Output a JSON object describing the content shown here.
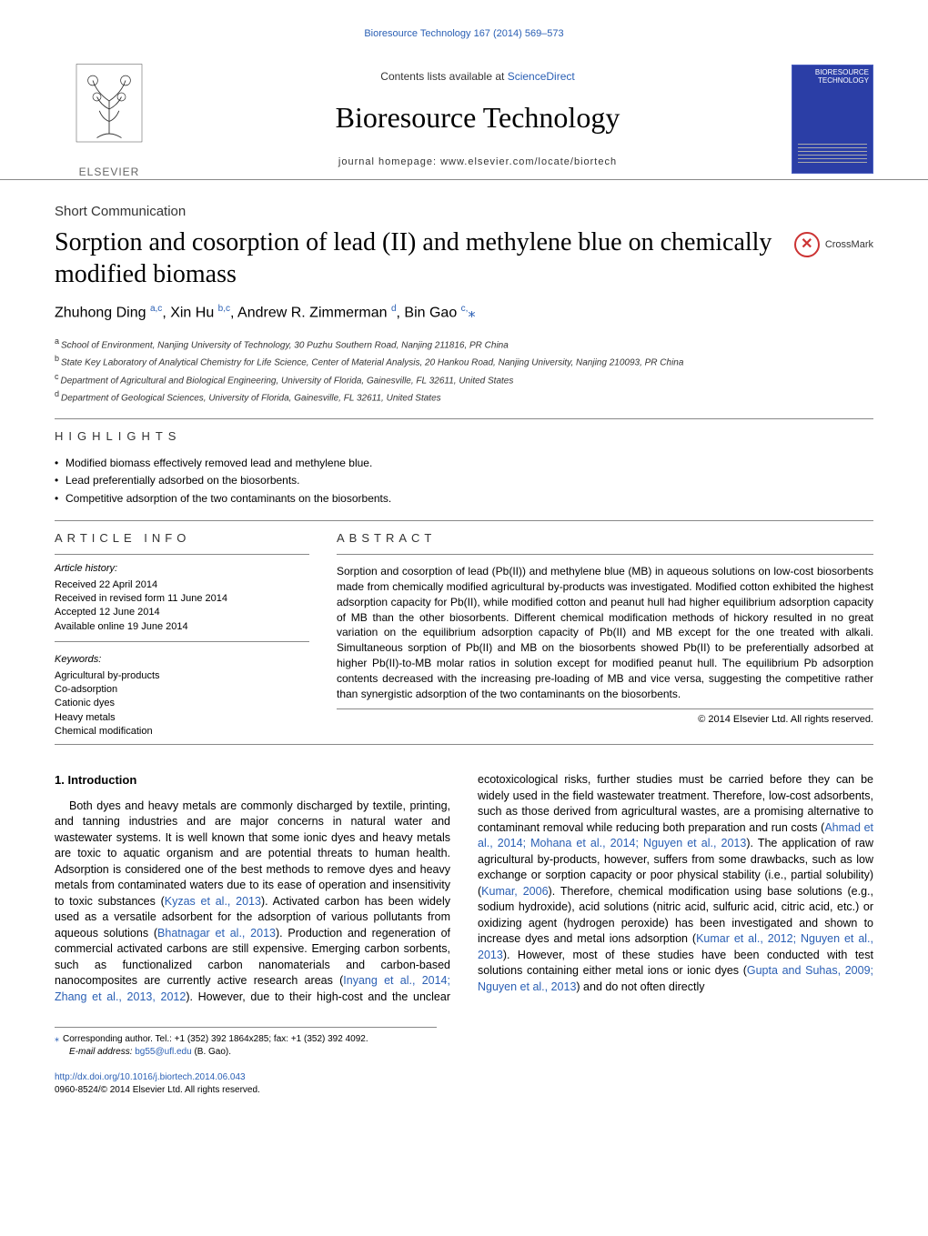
{
  "header_link": "Bioresource Technology 167 (2014) 569–573",
  "contents_line_prefix": "Contents lists available at ",
  "contents_line_link": "ScienceDirect",
  "journal_name": "Bioresource Technology",
  "homepage_line": "journal homepage: www.elsevier.com/locate/biortech",
  "cover_label": "BIORESOURCE\nTECHNOLOGY",
  "elsevier_label": "ELSEVIER",
  "short_comm": "Short Communication",
  "title": "Sorption and cosorption of lead (II) and methylene blue on chemically modified biomass",
  "crossmark_text": "CrossMark",
  "authors_html": "Zhuhong Ding <sup>a,c</sup>, Xin Hu <sup>b,c</sup>, Andrew R. Zimmerman <sup>d</sup>, Bin Gao <sup>c,</sup><span class='star'>⁎</span>",
  "affiliations": [
    {
      "sup": "a",
      "text": "School of Environment, Nanjing University of Technology, 30 Puzhu Southern Road, Nanjing 211816, PR China"
    },
    {
      "sup": "b",
      "text": "State Key Laboratory of Analytical Chemistry for Life Science, Center of Material Analysis, 20 Hankou Road, Nanjing University, Nanjing 210093, PR China"
    },
    {
      "sup": "c",
      "text": "Department of Agricultural and Biological Engineering, University of Florida, Gainesville, FL 32611, United States"
    },
    {
      "sup": "d",
      "text": "Department of Geological Sciences, University of Florida, Gainesville, FL 32611, United States"
    }
  ],
  "highlights_label": "HIGHLIGHTS",
  "highlights": [
    "Modified biomass effectively removed lead and methylene blue.",
    "Lead preferentially adsorbed on the biosorbents.",
    "Competitive adsorption of the two contaminants on the biosorbents."
  ],
  "article_info_label": "ARTICLE INFO",
  "abstract_label": "ABSTRACT",
  "history": {
    "label": "Article history:",
    "received": "Received 22 April 2014",
    "revised": "Received in revised form 11 June 2014",
    "accepted": "Accepted 12 June 2014",
    "online": "Available online 19 June 2014"
  },
  "keywords": {
    "label": "Keywords:",
    "items": [
      "Agricultural by-products",
      "Co-adsorption",
      "Cationic dyes",
      "Heavy metals",
      "Chemical modification"
    ]
  },
  "abstract": "Sorption and cosorption of lead (Pb(II)) and methylene blue (MB) in aqueous solutions on low-cost biosorbents made from chemically modified agricultural by-products was investigated. Modified cotton exhibited the highest adsorption capacity for Pb(II), while modified cotton and peanut hull had higher equilibrium adsorption capacity of MB than the other biosorbents. Different chemical modification methods of hickory resulted in no great variation on the equilibrium adsorption capacity of Pb(II) and MB except for the one treated with alkali. Simultaneous sorption of Pb(II) and MB on the biosorbents showed Pb(II) to be preferentially adsorbed at higher Pb(II)-to-MB molar ratios in solution except for modified peanut hull. The equilibrium Pb adsorption contents decreased with the increasing pre-loading of MB and vice versa, suggesting the competitive rather than synergistic adsorption of the two contaminants on the biosorbents.",
  "copyright": "© 2014 Elsevier Ltd. All rights reserved.",
  "intro_heading": "1. Introduction",
  "intro_p1": "Both dyes and heavy metals are commonly discharged by textile, printing, and tanning industries and are major concerns in natural water and wastewater systems. It is well known that some ionic dyes and heavy metals are toxic to aquatic organism and are potential threats to human health. Adsorption is considered one of the best methods to remove dyes and heavy metals from contaminated waters due to its ease of operation and insensitivity to toxic substances (<span class='link-blue'>Kyzas et al., 2013</span>). Activated carbon has been widely used as a versatile adsorbent for the adsorption of various pollutants from aqueous solutions (<span class='link-blue'>Bhatnagar et al., 2013</span>). Production and regeneration of commercial activated carbons are still expensive. Emerging carbon sorbents, such as functionalized carbon nanomaterials and carbon-based nanocomposites are currently active research areas (<span class='link-blue'>Inyang et al., 2014; Zhang et al., 2013, 2012</span>). However, due to their high-cost and the unclear ecotoxicological risks, further studies must be carried before they can be widely used in the field wastewater treatment. Therefore, low-cost adsorbents, such as those derived from agricultural wastes, are a promising alternative to contaminant removal while reducing both preparation and run costs (<span class='link-blue'>Ahmad et al., 2014; Mohana et al., 2014; Nguyen et al., 2013</span>). The application of raw agricultural by-products, however, suffers from some drawbacks, such as low exchange or sorption capacity or poor physical stability (i.e., partial solubility) (<span class='link-blue'>Kumar, 2006</span>). Therefore, chemical modification using base solutions (e.g., sodium hydroxide), acid solutions (nitric acid, sulfuric acid, citric acid, etc.) or oxidizing agent (hydrogen peroxide) has been investigated and shown to increase dyes and metal ions adsorption (<span class='link-blue'>Kumar et al., 2012; Nguyen et al., 2013</span>). However, most of these studies have been conducted with test solutions containing either metal ions or ionic dyes (<span class='link-blue'>Gupta and Suhas, 2009; Nguyen et al., 2013</span>) and do not often directly",
  "footnote": {
    "corresponding": "Corresponding author. Tel.: +1 (352) 392 1864x285; fax: +1 (352) 392 4092.",
    "email_label": "E-mail address: ",
    "email": "bg55@ufl.edu",
    "email_suffix": " (B. Gao)."
  },
  "footer": {
    "doi": "http://dx.doi.org/10.1016/j.biortech.2014.06.043",
    "issn": "0960-8524/© 2014 Elsevier Ltd. All rights reserved."
  }
}
